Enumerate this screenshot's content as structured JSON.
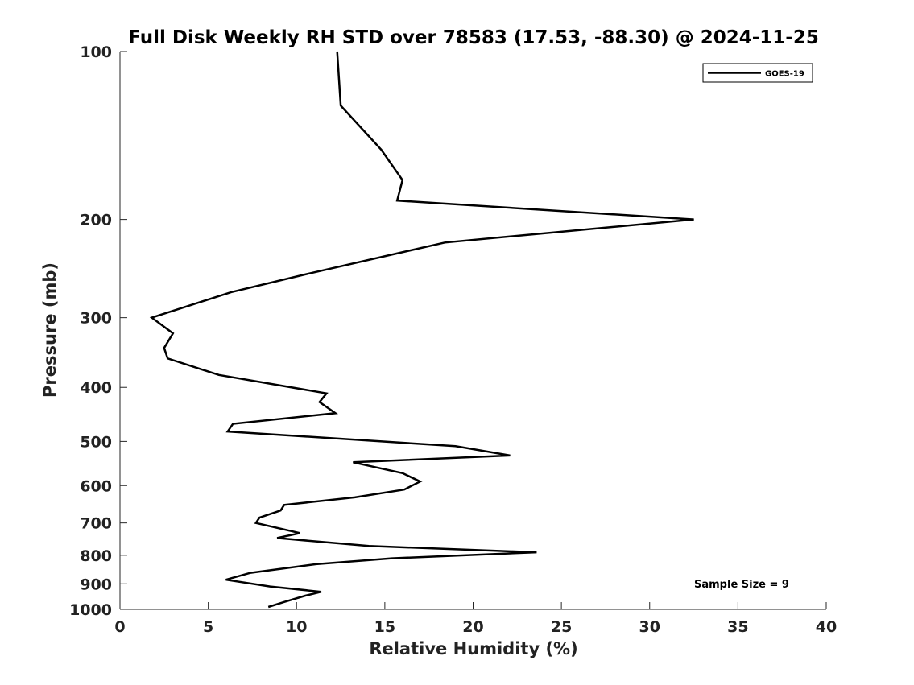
{
  "chart_data": {
    "type": "line",
    "title": "Full Disk Weekly RH STD over 78583 (17.53, -88.30) @ 2024-11-25",
    "xlabel": "Relative Humidity (%)",
    "ylabel": "Pressure (mb)",
    "xlim": [
      0,
      40
    ],
    "ylim": [
      100,
      1000
    ],
    "y_scale": "log",
    "y_reversed": true,
    "x_ticks": [
      0,
      5,
      10,
      15,
      20,
      25,
      30,
      35,
      40
    ],
    "y_ticks": [
      100,
      200,
      300,
      400,
      500,
      600,
      700,
      800,
      900,
      1000
    ],
    "grid": false,
    "legend_position": "top-right",
    "series": [
      {
        "name": "GOES-19",
        "color": "#000000",
        "points": [
          [
            12.3,
            100
          ],
          [
            12.5,
            125
          ],
          [
            14.8,
            150
          ],
          [
            16.0,
            170
          ],
          [
            15.7,
            185
          ],
          [
            32.5,
            200
          ],
          [
            18.4,
            220
          ],
          [
            10.7,
            250
          ],
          [
            6.3,
            270
          ],
          [
            1.8,
            300
          ],
          [
            3.0,
            320
          ],
          [
            2.5,
            340
          ],
          [
            2.7,
            355
          ],
          [
            5.6,
            380
          ],
          [
            11.7,
            410
          ],
          [
            11.3,
            425
          ],
          [
            12.2,
            445
          ],
          [
            6.4,
            465
          ],
          [
            6.1,
            480
          ],
          [
            19.0,
            510
          ],
          [
            22.1,
            530
          ],
          [
            13.2,
            545
          ],
          [
            16.0,
            570
          ],
          [
            17.0,
            590
          ],
          [
            16.1,
            610
          ],
          [
            13.3,
            630
          ],
          [
            9.3,
            650
          ],
          [
            9.1,
            665
          ],
          [
            7.9,
            685
          ],
          [
            7.7,
            700
          ],
          [
            10.2,
            730
          ],
          [
            8.9,
            745
          ],
          [
            14.1,
            770
          ],
          [
            23.6,
            790
          ],
          [
            15.4,
            810
          ],
          [
            11.1,
            830
          ],
          [
            7.4,
            860
          ],
          [
            6.0,
            885
          ],
          [
            8.5,
            910
          ],
          [
            11.4,
            930
          ],
          [
            10.5,
            945
          ],
          [
            9.3,
            970
          ],
          [
            8.4,
            990
          ]
        ]
      }
    ],
    "annotations": [
      "Sample Size = 9"
    ]
  }
}
